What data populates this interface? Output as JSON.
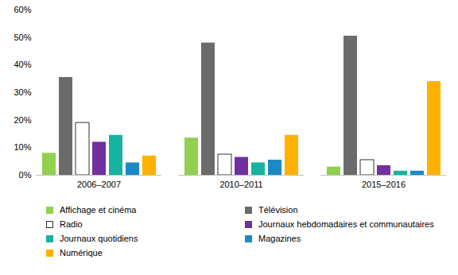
{
  "chart_data": {
    "type": "bar",
    "categories": [
      "2006–2007",
      "2010–2011",
      "2015–2016"
    ],
    "series": [
      {
        "name": "Affichage et cinéma",
        "color": "#92d050",
        "values": [
          8,
          13.5,
          3
        ]
      },
      {
        "name": "Télévision",
        "color": "#6b6b6b",
        "values": [
          35.5,
          48,
          50.5
        ]
      },
      {
        "name": "Radio",
        "color": "#ffffff",
        "values": [
          19,
          7.5,
          5.5
        ]
      },
      {
        "name": "Journaux hebdomadaires et communautaires",
        "color": "#7030a0",
        "values": [
          12,
          6.5,
          3.5
        ]
      },
      {
        "name": "Journaux quotidiens",
        "color": "#16b3a0",
        "values": [
          14.5,
          4.5,
          1.5
        ]
      },
      {
        "name": "Magazines",
        "color": "#1b8ac4",
        "values": [
          4.5,
          5.5,
          1.5
        ]
      },
      {
        "name": "Numérique",
        "color": "#ffb000",
        "values": [
          7,
          14.5,
          34
        ]
      }
    ],
    "ylim": [
      0,
      60
    ],
    "yticks": [
      {
        "value": 0,
        "label": "0%"
      },
      {
        "value": 10,
        "label": "10%"
      },
      {
        "value": 20,
        "label": "20%"
      },
      {
        "value": 30,
        "label": "30%"
      },
      {
        "value": 40,
        "label": "40%"
      },
      {
        "value": 50,
        "label": "50%"
      },
      {
        "value": 60,
        "label": "60%"
      }
    ],
    "grid": false,
    "legend": "bottom"
  }
}
